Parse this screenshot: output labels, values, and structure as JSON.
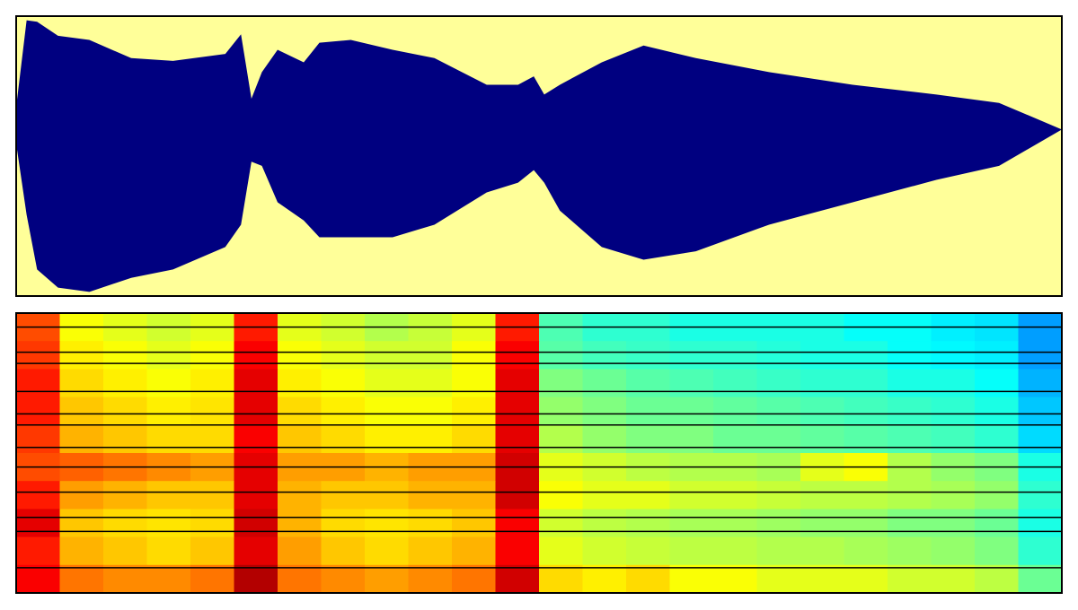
{
  "chart_data": [
    {
      "type": "band",
      "color": "#000080",
      "background": "#ffff99",
      "x": [
        0,
        1,
        2,
        4,
        7,
        11,
        15,
        20,
        21.5,
        22.5,
        23.5,
        25,
        27.5,
        29,
        32,
        36,
        40,
        45,
        48,
        49.5,
        50.5,
        52,
        56,
        60,
        65,
        72,
        80,
        88,
        94,
        100
      ],
      "xlim": [
        0,
        100
      ],
      "ylim": [
        -1,
        1
      ],
      "upper": [
        0.35,
        0.97,
        0.96,
        0.86,
        0.83,
        0.7,
        0.68,
        0.73,
        0.87,
        0.41,
        0.6,
        0.76,
        0.67,
        0.81,
        0.83,
        0.76,
        0.7,
        0.51,
        0.51,
        0.57,
        0.44,
        0.51,
        0.67,
        0.79,
        0.7,
        0.6,
        0.51,
        0.44,
        0.38,
        0.19
      ],
      "lower": [
        0.09,
        -0.42,
        -0.81,
        -0.94,
        -0.97,
        -0.87,
        -0.81,
        -0.65,
        -0.49,
        -0.04,
        -0.07,
        -0.33,
        -0.46,
        -0.58,
        -0.58,
        -0.58,
        -0.49,
        -0.26,
        -0.19,
        -0.1,
        -0.19,
        -0.39,
        -0.65,
        -0.74,
        -0.68,
        -0.49,
        -0.33,
        -0.17,
        -0.07,
        0.19
      ]
    },
    {
      "type": "heatmap",
      "colormap": "jet",
      "clim": [
        0,
        1
      ],
      "ylim": [
        0,
        100
      ],
      "trace_color": "#000000",
      "values": [
        [
          0.8,
          0.62,
          0.6,
          0.58,
          0.6,
          0.85,
          0.6,
          0.58,
          0.55,
          0.57,
          0.6,
          0.85,
          0.45,
          0.42,
          0.42,
          0.4,
          0.4,
          0.4,
          0.4,
          0.38,
          0.38,
          0.36,
          0.35,
          0.28
        ],
        [
          0.82,
          0.64,
          0.62,
          0.6,
          0.62,
          0.88,
          0.62,
          0.6,
          0.58,
          0.58,
          0.62,
          0.88,
          0.46,
          0.44,
          0.43,
          0.42,
          0.42,
          0.41,
          0.4,
          0.4,
          0.38,
          0.37,
          0.36,
          0.28
        ],
        [
          0.85,
          0.66,
          0.64,
          0.62,
          0.64,
          0.9,
          0.64,
          0.62,
          0.6,
          0.6,
          0.62,
          0.9,
          0.5,
          0.48,
          0.46,
          0.45,
          0.44,
          0.43,
          0.42,
          0.42,
          0.4,
          0.4,
          0.38,
          0.3
        ],
        [
          0.85,
          0.68,
          0.66,
          0.64,
          0.65,
          0.9,
          0.66,
          0.64,
          0.62,
          0.62,
          0.64,
          0.9,
          0.52,
          0.5,
          0.48,
          0.48,
          0.47,
          0.46,
          0.45,
          0.44,
          0.43,
          0.42,
          0.4,
          0.32
        ],
        [
          0.82,
          0.7,
          0.68,
          0.66,
          0.66,
          0.88,
          0.68,
          0.66,
          0.64,
          0.64,
          0.66,
          0.9,
          0.55,
          0.52,
          0.5,
          0.5,
          0.48,
          0.48,
          0.47,
          0.46,
          0.45,
          0.44,
          0.42,
          0.34
        ],
        [
          0.8,
          0.78,
          0.76,
          0.74,
          0.72,
          0.9,
          0.72,
          0.72,
          0.7,
          0.72,
          0.72,
          0.92,
          0.6,
          0.58,
          0.56,
          0.55,
          0.55,
          0.54,
          0.6,
          0.62,
          0.55,
          0.52,
          0.5,
          0.4
        ],
        [
          0.85,
          0.72,
          0.7,
          0.68,
          0.68,
          0.9,
          0.7,
          0.68,
          0.68,
          0.7,
          0.7,
          0.92,
          0.62,
          0.6,
          0.6,
          0.58,
          0.58,
          0.57,
          0.56,
          0.56,
          0.55,
          0.54,
          0.52,
          0.42
        ],
        [
          0.9,
          0.68,
          0.66,
          0.65,
          0.66,
          0.92,
          0.7,
          0.66,
          0.65,
          0.66,
          0.68,
          0.88,
          0.58,
          0.56,
          0.55,
          0.54,
          0.54,
          0.53,
          0.52,
          0.52,
          0.5,
          0.5,
          0.48,
          0.4
        ],
        [
          0.85,
          0.7,
          0.68,
          0.66,
          0.68,
          0.9,
          0.72,
          0.68,
          0.66,
          0.68,
          0.7,
          0.88,
          0.6,
          0.58,
          0.57,
          0.56,
          0.56,
          0.55,
          0.55,
          0.54,
          0.53,
          0.52,
          0.5,
          0.42
        ],
        [
          0.88,
          0.76,
          0.74,
          0.74,
          0.76,
          0.95,
          0.76,
          0.74,
          0.72,
          0.74,
          0.76,
          0.92,
          0.66,
          0.64,
          0.66,
          0.62,
          0.62,
          0.6,
          0.6,
          0.6,
          0.58,
          0.58,
          0.56,
          0.48
        ]
      ],
      "trace_levels": [
        95,
        86,
        82,
        72,
        64,
        60,
        52,
        45,
        36,
        27,
        22,
        9
      ]
    }
  ]
}
